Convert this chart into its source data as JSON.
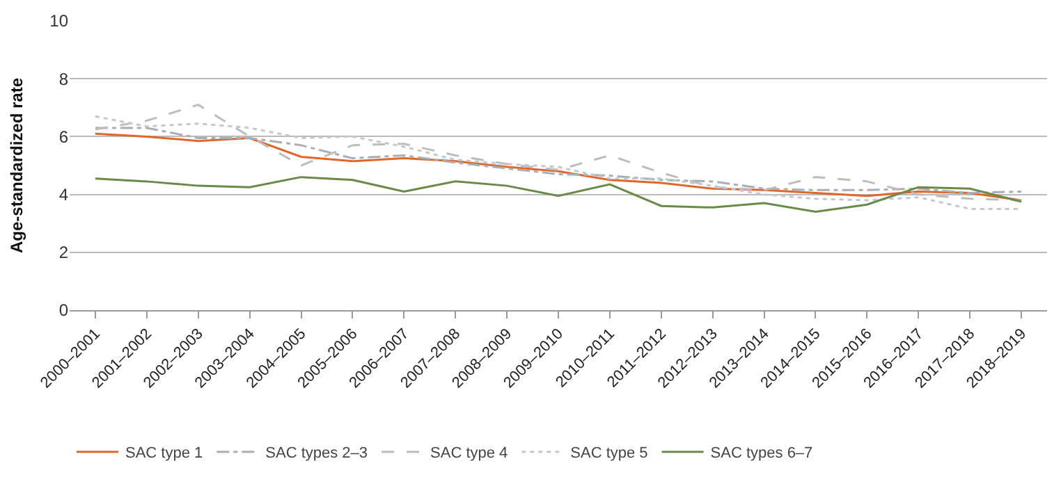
{
  "chart_data": {
    "type": "line",
    "ylabel": "Age-standardized rate",
    "categories": [
      "2000–2001",
      "2001–2002",
      "2002–2003",
      "2003–2004",
      "2004–2005",
      "2005–2006",
      "2006–2007",
      "2007–2008",
      "2008–2009",
      "2009–2010",
      "2010–2011",
      "2011–2012",
      "2012–2013",
      "2013–2014",
      "2014–2015",
      "2015–2016",
      "2016–2017",
      "2017–2018",
      "2018–2019"
    ],
    "series": [
      {
        "name": "SAC type 1",
        "color": "#e0662a",
        "line_style": "solid",
        "values": [
          6.1,
          6.0,
          5.85,
          5.95,
          5.3,
          5.15,
          5.25,
          5.15,
          4.95,
          4.8,
          4.5,
          4.4,
          4.2,
          4.15,
          4.05,
          3.95,
          4.1,
          4.05,
          3.8
        ]
      },
      {
        "name": "SAC types 2–3",
        "color": "#a9aeb5",
        "line_style": "dashdot",
        "values": [
          6.3,
          6.3,
          5.95,
          5.95,
          5.7,
          5.25,
          5.35,
          5.1,
          4.9,
          4.7,
          4.65,
          4.5,
          4.45,
          4.2,
          4.15,
          4.15,
          4.2,
          4.05,
          4.1
        ]
      },
      {
        "name": "SAC type 4",
        "color": "#bdbdbd",
        "line_style": "dashed",
        "values": [
          6.25,
          6.55,
          7.1,
          6.0,
          5.0,
          5.7,
          5.75,
          5.35,
          5.05,
          4.85,
          5.35,
          4.75,
          4.25,
          4.15,
          4.6,
          4.45,
          4.0,
          3.85,
          3.8
        ]
      },
      {
        "name": "SAC type 5",
        "color": "#c3c8d0",
        "line_style": "dotted",
        "values": [
          6.7,
          6.35,
          6.45,
          6.3,
          5.95,
          6.0,
          5.65,
          5.2,
          5.05,
          4.95,
          4.55,
          4.55,
          4.3,
          4.0,
          3.85,
          3.8,
          3.9,
          3.5,
          3.5
        ]
      },
      {
        "name": "SAC types 6–7",
        "color": "#6b8a4a",
        "line_style": "solid",
        "values": [
          4.55,
          4.45,
          4.3,
          4.25,
          4.6,
          4.5,
          4.1,
          4.45,
          4.3,
          3.95,
          4.35,
          3.6,
          3.55,
          3.7,
          3.4,
          3.65,
          4.25,
          4.2,
          3.75
        ]
      }
    ],
    "ylim": [
      0,
      10
    ],
    "yticks": [
      0,
      2,
      4,
      6,
      8,
      10
    ],
    "grid": "y",
    "legend": "bottom",
    "marker": "none"
  }
}
